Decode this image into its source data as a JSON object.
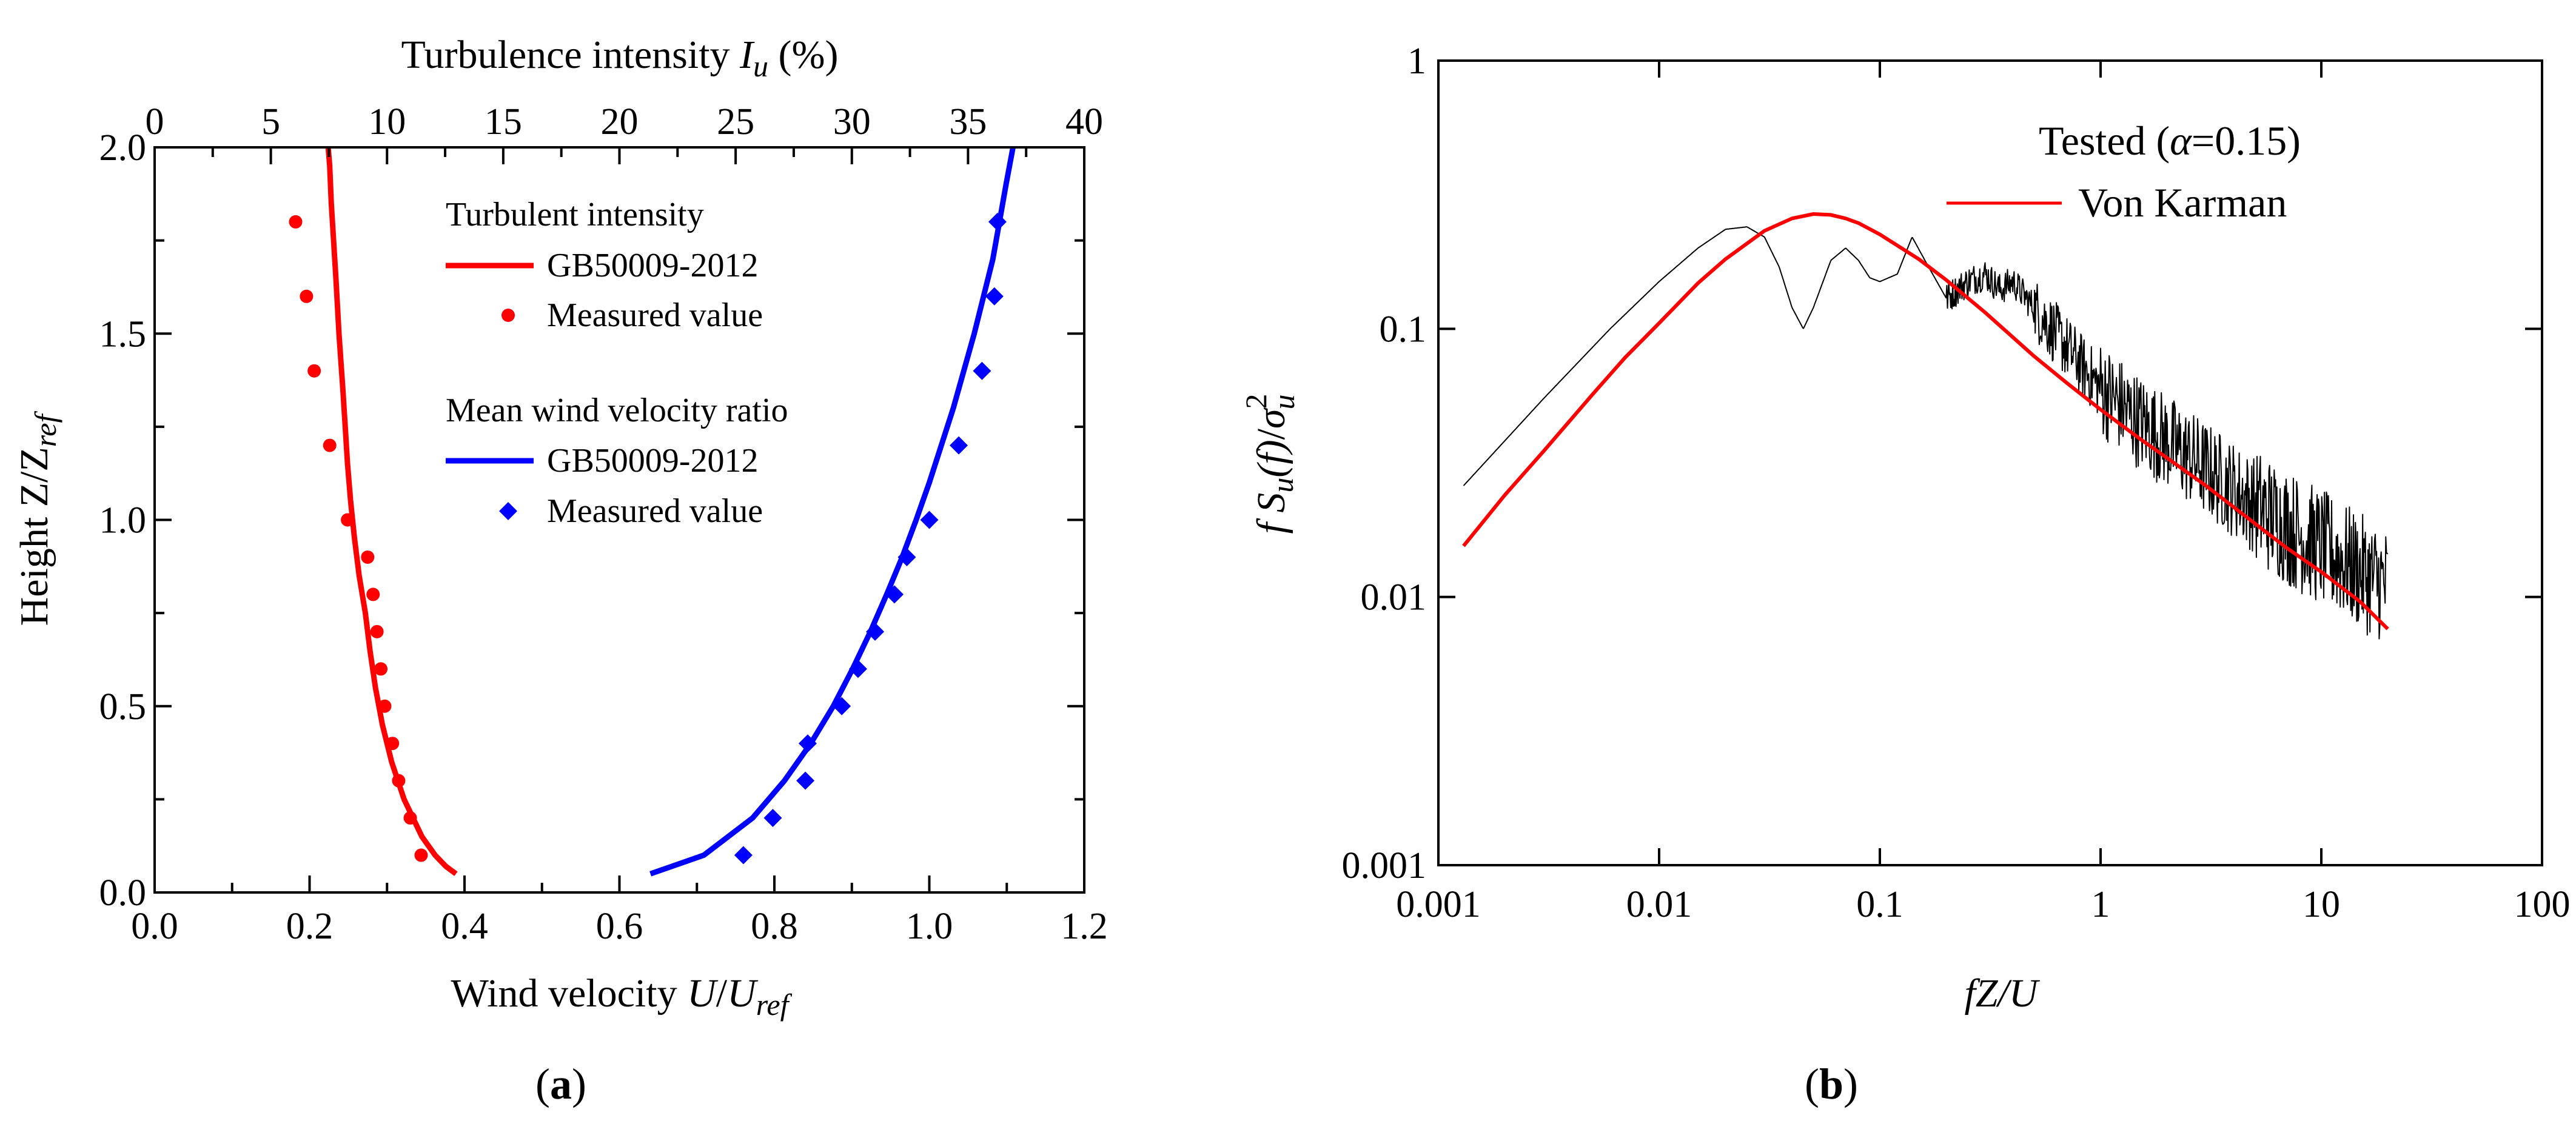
{
  "chart_data": [
    {
      "id": "a",
      "type": "line+scatter",
      "panel_label": "a",
      "xlabel_bottom": {
        "prefix": "Wind velocity ",
        "var": "U",
        "slash": "/",
        "var2": "U",
        "sub": "ref"
      },
      "xlabel_top": {
        "prefix": "Turbulence intensity ",
        "var": "I",
        "sub": "u",
        "suffix": " (%)"
      },
      "ylabel": {
        "prefix": "Height Z/Z",
        "sub": "ref"
      },
      "xlim_bottom": [
        0,
        1.2
      ],
      "xlim_top": [
        0,
        40
      ],
      "ylim": [
        0,
        2.0
      ],
      "xticks_bottom": [
        "0.0",
        "0.2",
        "0.4",
        "0.6",
        "0.8",
        "1.0",
        "1.2"
      ],
      "xticks_top": [
        "0",
        "5",
        "10",
        "15",
        "20",
        "25",
        "30",
        "35",
        "40"
      ],
      "yticks": [
        "0.0",
        "0.5",
        "1.0",
        "1.5",
        "2.0"
      ],
      "legend": {
        "group1_title": "Turbulent intensity",
        "group1_line": "GB50009-2012",
        "group1_marker": "Measured value",
        "group2_title": "Mean wind velocity ratio",
        "group2_line": "GB50009-2012",
        "group2_marker": "Measured value"
      },
      "series": [
        {
          "name": "GB50009-2012 (turbulent intensity)",
          "axis": "bottom",
          "style": "line",
          "color": "#ff0000",
          "x": [
            0.389,
            0.376,
            0.362,
            0.345,
            0.322,
            0.306,
            0.294,
            0.285,
            0.278,
            0.272,
            0.264,
            0.258,
            0.253,
            0.249,
            0.246,
            0.243,
            0.238,
            0.234,
            0.231,
            0.228,
            0.226,
            0.224
          ],
          "y": [
            0.05,
            0.07,
            0.1,
            0.15,
            0.25,
            0.35,
            0.45,
            0.55,
            0.65,
            0.75,
            0.85,
            0.95,
            1.05,
            1.15,
            1.25,
            1.35,
            1.5,
            1.65,
            1.75,
            1.85,
            1.95,
            2.0
          ]
        },
        {
          "name": "Measured value (turbulent intensity)",
          "axis": "bottom",
          "style": "circle",
          "color": "#ff0000",
          "x": [
            0.182,
            0.196,
            0.206,
            0.226,
            0.249,
            0.275,
            0.282,
            0.287,
            0.292,
            0.297,
            0.307,
            0.315,
            0.33,
            0.344
          ],
          "y": [
            1.8,
            1.6,
            1.4,
            1.2,
            1.0,
            0.9,
            0.8,
            0.7,
            0.6,
            0.5,
            0.4,
            0.3,
            0.2,
            0.1
          ]
        },
        {
          "name": "GB50009-2012 (mean wind velocity ratio)",
          "axis": "bottom",
          "style": "line",
          "color": "#0000ff",
          "x": [
            0.64,
            0.709,
            0.772,
            0.813,
            0.847,
            0.876,
            0.901,
            0.924,
            0.945,
            0.965,
            0.983,
            1.0,
            1.031,
            1.058,
            1.082,
            1.099,
            1.108
          ],
          "y": [
            0.05,
            0.1,
            0.2,
            0.3,
            0.4,
            0.5,
            0.6,
            0.7,
            0.8,
            0.9,
            1.0,
            1.1,
            1.3,
            1.5,
            1.7,
            1.9,
            2.0
          ]
        },
        {
          "name": "Measured value (mean wind velocity ratio)",
          "axis": "bottom",
          "style": "diamond",
          "color": "#0000ff",
          "x": [
            0.76,
            0.798,
            0.84,
            0.843,
            0.887,
            0.908,
            0.93,
            0.955,
            0.971,
            1.0,
            1.038,
            1.068,
            1.084,
            1.088
          ],
          "y": [
            0.1,
            0.2,
            0.3,
            0.4,
            0.5,
            0.6,
            0.7,
            0.8,
            0.9,
            1.0,
            1.2,
            1.4,
            1.6,
            1.8
          ]
        }
      ]
    },
    {
      "id": "b",
      "type": "line",
      "panel_label": "b",
      "xscale": "log",
      "yscale": "log",
      "xlabel": "fZ/U",
      "ylabel": {
        "f": "f",
        "S": "S",
        "sub_u": "u",
        "arg": "(f)",
        "slash": "/",
        "sigma": "σ",
        "sup": "2",
        "sub": "u"
      },
      "xlim": [
        0.001,
        100
      ],
      "ylim": [
        0.001,
        1
      ],
      "xticks": [
        "0.001",
        "0.01",
        "0.1",
        "1",
        "10",
        "100"
      ],
      "yticks": [
        "0.001",
        "0.01",
        "0.1",
        "1"
      ],
      "legend": {
        "tested_prefix": "Tested  (",
        "alpha": "α",
        "tested_suffix": "=0.15)",
        "von_karman": "Von Karman"
      },
      "series": [
        {
          "name": "Tested (α=0.15)",
          "style": "line",
          "color": "#000000",
          "x": [
            0.0013,
            0.003,
            0.006,
            0.01,
            0.015,
            0.02,
            0.025,
            0.03,
            0.035,
            0.04,
            0.045,
            0.05,
            0.06,
            0.07,
            0.08,
            0.09,
            0.1,
            0.12,
            0.14,
            0.16,
            0.2,
            0.25,
            0.3,
            0.35,
            0.4,
            0.5,
            0.6,
            0.8,
            1,
            1.5,
            2,
            3,
            5,
            8,
            12,
            16,
            20
          ],
          "y": [
            0.026,
            0.055,
            0.1,
            0.15,
            0.2,
            0.235,
            0.24,
            0.22,
            0.17,
            0.12,
            0.1,
            0.12,
            0.18,
            0.2,
            0.18,
            0.155,
            0.15,
            0.16,
            0.22,
            0.18,
            0.13,
            0.15,
            0.16,
            0.14,
            0.15,
            0.12,
            0.1,
            0.075,
            0.06,
            0.045,
            0.038,
            0.03,
            0.022,
            0.017,
            0.014,
            0.012,
            0.011
          ]
        },
        {
          "name": "Von Karman",
          "style": "line",
          "color": "#ff0000",
          "x": [
            0.0013,
            0.002,
            0.003,
            0.005,
            0.007,
            0.01,
            0.015,
            0.02,
            0.03,
            0.04,
            0.05,
            0.06,
            0.07,
            0.08,
            0.1,
            0.15,
            0.2,
            0.3,
            0.5,
            0.7,
            1,
            1.5,
            2,
            3,
            5,
            7,
            10,
            15,
            20
          ],
          "y": [
            0.0155,
            0.024,
            0.035,
            0.057,
            0.078,
            0.105,
            0.148,
            0.182,
            0.232,
            0.258,
            0.268,
            0.266,
            0.258,
            0.248,
            0.225,
            0.182,
            0.152,
            0.115,
            0.079,
            0.063,
            0.05,
            0.039,
            0.033,
            0.026,
            0.0188,
            0.0152,
            0.0124,
            0.0096,
            0.0076
          ]
        }
      ]
    }
  ]
}
